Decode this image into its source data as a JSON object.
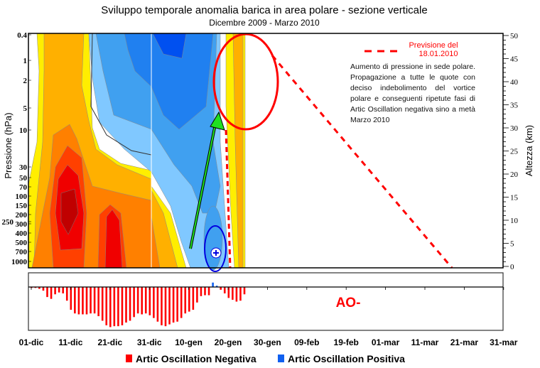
{
  "title": "Sviluppo temporale anomalia barica in area polare - sezione verticale",
  "subtitle": "Dicembre 2009 - Marzo 2010",
  "left_axis": {
    "label": "Pressione (hPa)",
    "ticks": [
      "0.4",
      "1",
      "2",
      "5",
      "10",
      "30",
      "50",
      "70",
      "100",
      "150",
      "200",
      "250",
      "300",
      "400",
      "500",
      "700",
      "1000"
    ]
  },
  "right_axis": {
    "label": "Altezza (km)",
    "ticks": [
      "0",
      "5",
      "10",
      "15",
      "20",
      "25",
      "30",
      "35",
      "40",
      "45",
      "50"
    ],
    "range": [
      0,
      50
    ]
  },
  "forecast_legend": {
    "line1": "Previsione del",
    "line2": "18.01.2010",
    "color": "#ff0000"
  },
  "note": "Aumento di pressione in sede polare. Propagazione a tutte le quote con deciso indebolimento del vortice polare e conseguenti ripetute fasi di Artic Oscillation negativa sino a metà Marzo 2010",
  "ao_label": "AO-",
  "chart_data": [
    {
      "type": "heatmap",
      "title": "Sviluppo temporale anomalia barica in area polare - sezione verticale",
      "xlabel": "",
      "ylabel": "Pressione (hPa)",
      "y2label": "Altezza (km)",
      "note": "contour plot of pressure anomaly; warm = positive, cold = negative; data to ~20-gen"
    },
    {
      "type": "bar",
      "x_start": "01-dic",
      "x_ticks": [
        "01-dic",
        "11-dic",
        "21-dic",
        "31-dic",
        "10-gen",
        "20-gen",
        "30-gen",
        "09-feb",
        "19-feb",
        "01-mar",
        "11-mar",
        "21-mar",
        "31-mar"
      ],
      "values": [
        -0.1,
        -0.1,
        -0.2,
        -0.4,
        -1.1,
        -1.3,
        -0.8,
        -0.6,
        -0.7,
        -1.5,
        -2.5,
        -2.9,
        -3.0,
        -3.0,
        -3.0,
        -2.9,
        -2.9,
        -3.2,
        -3.7,
        -4.2,
        -4.4,
        -4.3,
        -4.3,
        -4.2,
        -3.9,
        -3.7,
        -3.3,
        -2.9,
        -3.0,
        -2.9,
        -3.1,
        -3.4,
        -3.8,
        -4.2,
        -4.3,
        -4.1,
        -3.9,
        -3.8,
        -3.4,
        -2.9,
        -2.7,
        -2.5,
        -1.7,
        -1.0,
        -0.9,
        -0.9,
        0.5,
        0.15,
        -0.3,
        -0.7,
        -1.2,
        -1.4,
        -1.6,
        -1.5,
        -0.8
      ],
      "ylim": [
        -4.6,
        1.6
      ],
      "legend": [
        {
          "label": "Artic Oscillation Negativa",
          "color": "#ff0000"
        },
        {
          "label": "Artic Oscillation Positiva",
          "color": "#1060f0"
        }
      ]
    }
  ]
}
